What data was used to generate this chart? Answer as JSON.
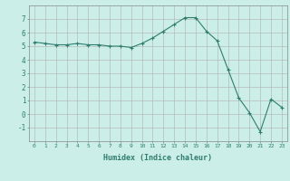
{
  "x": [
    0,
    1,
    2,
    3,
    4,
    5,
    6,
    7,
    8,
    9,
    10,
    11,
    12,
    13,
    14,
    15,
    16,
    17,
    18,
    19,
    20,
    21,
    22,
    23
  ],
  "y": [
    5.3,
    5.2,
    5.1,
    5.1,
    5.2,
    5.1,
    5.1,
    5.0,
    5.0,
    4.9,
    5.2,
    5.6,
    6.1,
    6.6,
    7.1,
    7.1,
    6.1,
    5.4,
    3.3,
    1.2,
    0.1,
    -1.3,
    1.1,
    0.5
  ],
  "xlabel": "Humidex (Indice chaleur)",
  "ylim": [
    -2,
    8
  ],
  "xlim": [
    -0.5,
    23.5
  ],
  "yticks": [
    -1,
    0,
    1,
    2,
    3,
    4,
    5,
    6,
    7
  ],
  "xticks": [
    0,
    1,
    2,
    3,
    4,
    5,
    6,
    7,
    8,
    9,
    10,
    11,
    12,
    13,
    14,
    15,
    16,
    17,
    18,
    19,
    20,
    21,
    22,
    23
  ],
  "line_color": "#2e7d6e",
  "marker": "+",
  "bg_color": "#cceee8",
  "grid_color": "#b0b0b0",
  "font_color": "#2e7d6e"
}
